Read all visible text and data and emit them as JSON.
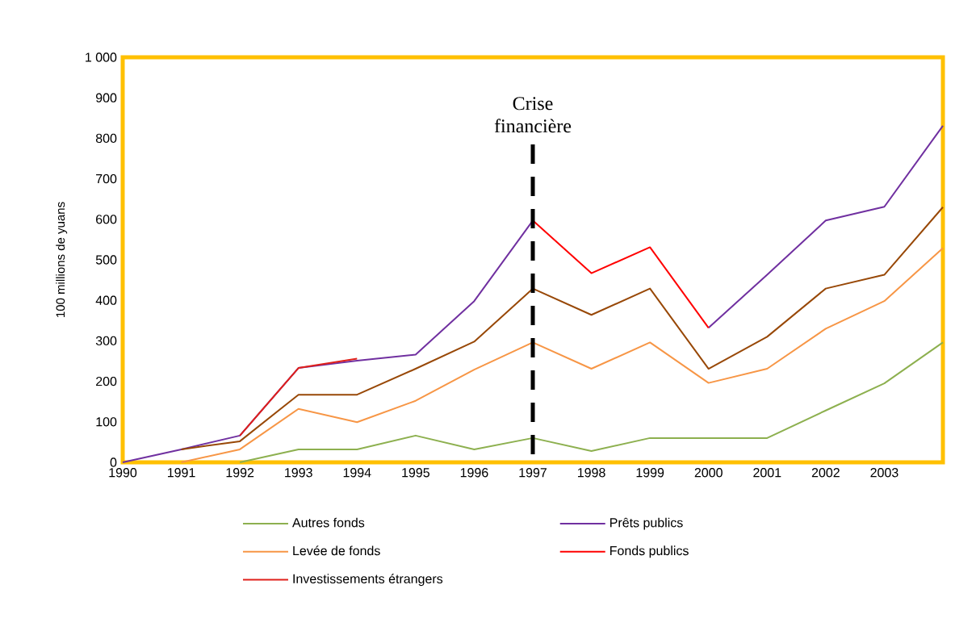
{
  "chart_data": {
    "type": "line",
    "ylabel": "100 millions de yuans",
    "categories": [
      "1990",
      "1991",
      "1992",
      "1993",
      "1994",
      "1995",
      "1996",
      "1997",
      "1998",
      "1999",
      "2000",
      "2001",
      "2002",
      "2003",
      null
    ],
    "ylim": [
      0,
      1000
    ],
    "yticks": [
      0,
      100,
      200,
      300,
      400,
      500,
      600,
      700,
      800,
      900,
      {
        "value": 1000,
        "label": "1 000"
      }
    ],
    "series": [
      {
        "name": "Autres fonds",
        "color": "#8db04f",
        "values": [
          null,
          null,
          0,
          32,
          32,
          66,
          32,
          60,
          28,
          60,
          60,
          60,
          128,
          195,
          296
        ]
      },
      {
        "name": "Prêts publics",
        "color": "#7030a0",
        "values": [
          0,
          32,
          66,
          233,
          251,
          266,
          398,
          597,
          null,
          null,
          332,
          463,
          597,
          631,
          831
        ]
      },
      {
        "name": "Levée de fonds",
        "color": "#f79646",
        "values": [
          null,
          0,
          32,
          132,
          99,
          152,
          229,
          296,
          231,
          296,
          196,
          231,
          330,
          398,
          529
        ]
      },
      {
        "name": "Fonds publics",
        "color": "#ff0000",
        "values": [
          null,
          null,
          null,
          null,
          null,
          null,
          null,
          597,
          467,
          531,
          332,
          null,
          null,
          null,
          null
        ]
      },
      {
        "name": "Investissements étrangers",
        "color": "#e0201a",
        "values": [
          null,
          null,
          66,
          233,
          256,
          null,
          null,
          null,
          null,
          null,
          null,
          null,
          null,
          null,
          null
        ]
      },
      {
        "color": "#984807",
        "values": [
          null,
          32,
          52,
          167,
          167,
          231,
          298,
          429,
          364,
          429,
          231,
          310,
          429,
          463,
          630
        ]
      }
    ],
    "ref_lines": [
      {
        "axis": "x",
        "value": "1997",
        "label": "Crise financière",
        "color": "#000000",
        "line_style": "dashed"
      }
    ],
    "legend": "bottom"
  }
}
